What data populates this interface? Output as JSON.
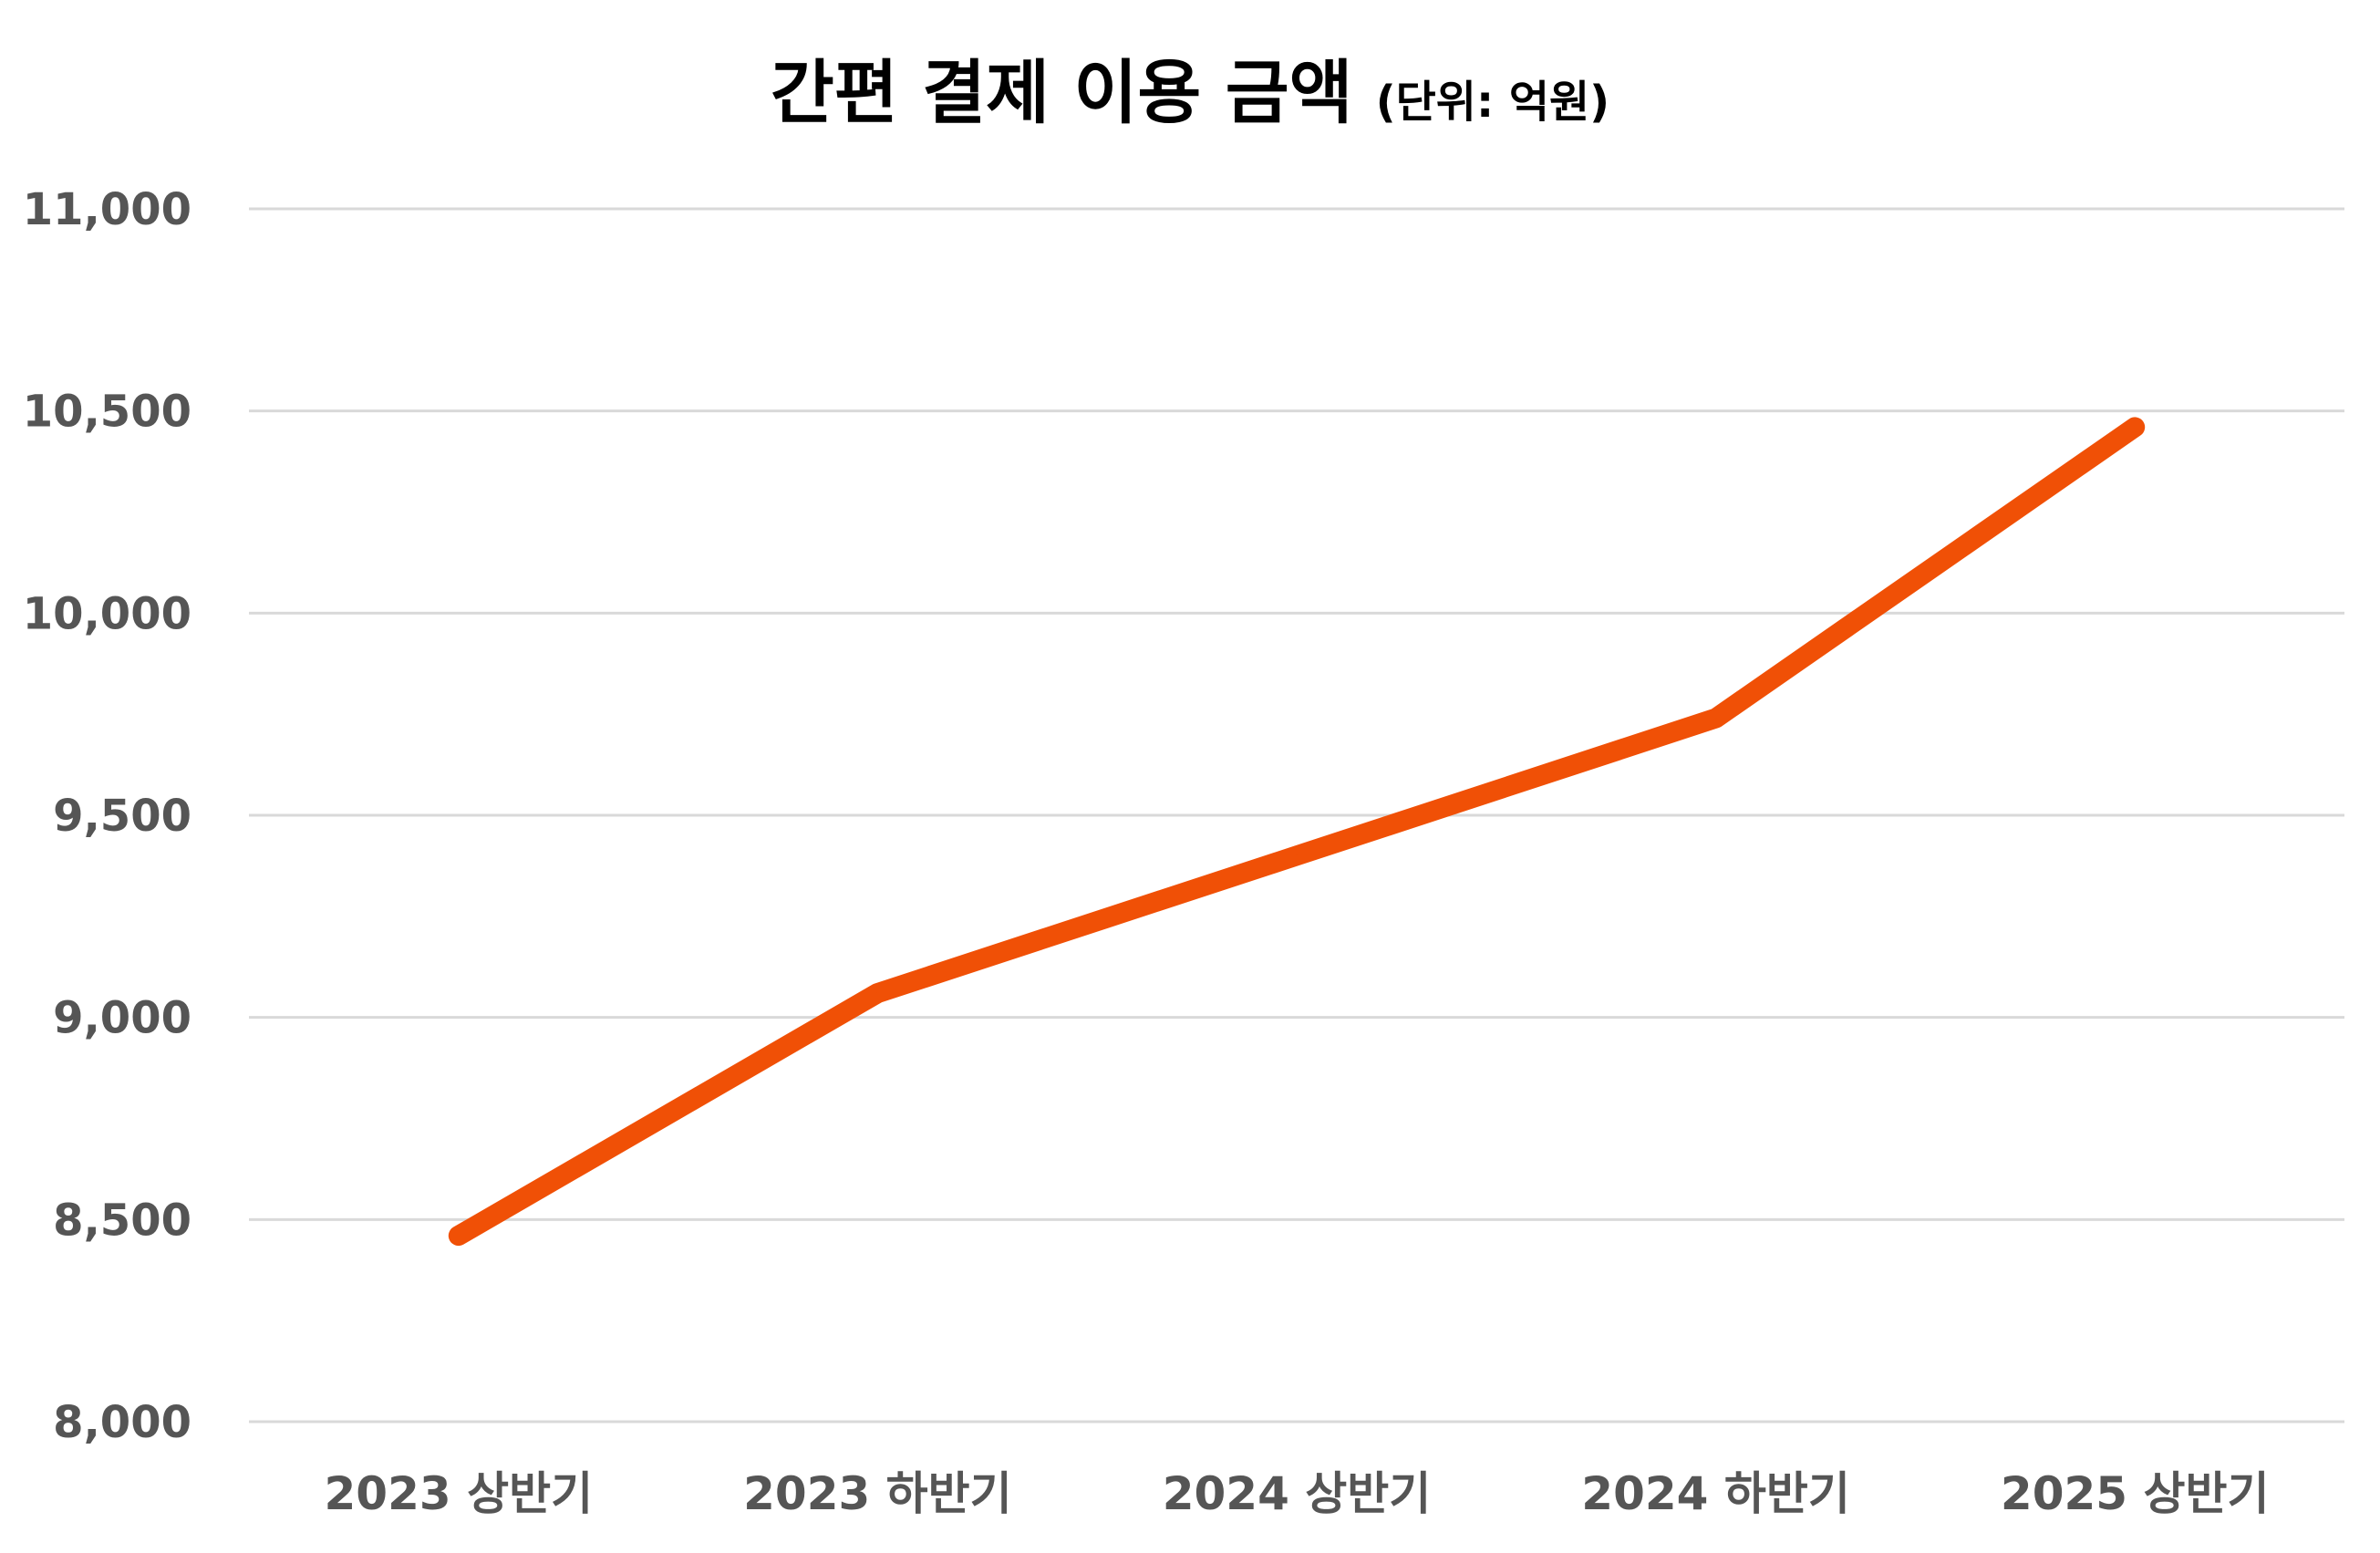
{
  "chart_data": {
    "type": "line",
    "title": "간편 결제 이용 금액",
    "subtitle": "(단위: 억원)",
    "xlabel": "",
    "ylabel": "",
    "categories": [
      "2023 상반기",
      "2023 하반기",
      "2024 상반기",
      "2024 하반기",
      "2025 상반기"
    ],
    "series": [
      {
        "values": [
          8460,
          9060,
          9400,
          9740,
          10460
        ],
        "color": "#f05006"
      }
    ],
    "ylim": [
      8000,
      11000
    ],
    "yticks": [
      8000,
      8500,
      9000,
      9500,
      10000,
      10500,
      11000
    ],
    "ytick_labels": [
      "8,000",
      "8,500",
      "9,000",
      "9,500",
      "10,000",
      "10,500",
      "11,000"
    ],
    "grid": true,
    "legend": "none"
  }
}
